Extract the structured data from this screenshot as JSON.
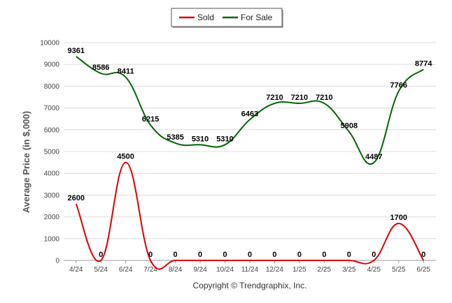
{
  "chart_data": {
    "type": "line",
    "categories": [
      "4/24",
      "5/24",
      "6/24",
      "7/24",
      "8/24",
      "9/24",
      "10/24",
      "11/24",
      "12/24",
      "1/25",
      "2/25",
      "3/25",
      "4/25",
      "5/25",
      "6/25"
    ],
    "series": [
      {
        "name": "Sold",
        "color": "#dd0000",
        "values": [
          2600,
          0,
          4500,
          0,
          0,
          0,
          0,
          0,
          0,
          0,
          0,
          0,
          0,
          1700,
          0
        ]
      },
      {
        "name": "For Sale",
        "color": "#006600",
        "values": [
          9361,
          8586,
          8411,
          6215,
          5385,
          5310,
          5310,
          6463,
          7210,
          7210,
          7210,
          5908,
          4487,
          7766,
          8774
        ]
      }
    ],
    "ylabel": "Average Price (in $,000)",
    "xlabel": "",
    "ylim": [
      0,
      10000
    ],
    "yticks": [
      0,
      1000,
      2000,
      3000,
      4000,
      5000,
      6000,
      7000,
      8000,
      9000,
      10000
    ],
    "grid": true,
    "legend_position": "top-center",
    "footer": "Copyright © Trendgraphix, Inc."
  }
}
